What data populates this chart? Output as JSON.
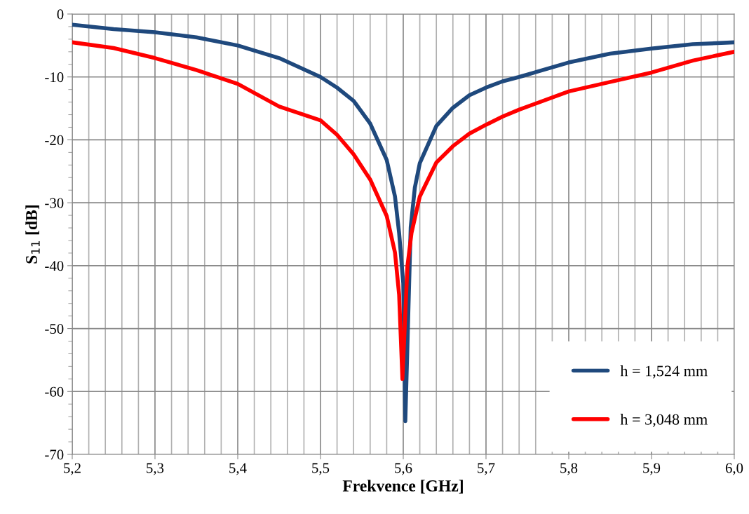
{
  "chart_data": {
    "type": "line",
    "xlabel": "Frekvence [GHz]",
    "ylabel": "S$_{11}$ [dB]",
    "xlim": [
      5.2,
      6.0
    ],
    "ylim": [
      -70,
      0
    ],
    "xticks": [
      {
        "value": 5.2,
        "label": "5,2"
      },
      {
        "value": 5.3,
        "label": "5,3"
      },
      {
        "value": 5.4,
        "label": "5,4"
      },
      {
        "value": 5.5,
        "label": "5,5"
      },
      {
        "value": 5.6,
        "label": "5,6"
      },
      {
        "value": 5.7,
        "label": "5,7"
      },
      {
        "value": 5.8,
        "label": "5,8"
      },
      {
        "value": 5.9,
        "label": "5,9"
      },
      {
        "value": 6.0,
        "label": "6,0"
      }
    ],
    "yticks": [
      -70,
      -60,
      -50,
      -40,
      -30,
      -20,
      -10,
      0
    ],
    "grid": true,
    "legend": "bottom right",
    "marker": "none",
    "line_style": "solid",
    "series": [
      {
        "name": "h = 1,524 mm",
        "color": "#1f497d",
        "x": [
          5.2,
          5.25,
          5.3,
          5.35,
          5.4,
          5.45,
          5.5,
          5.52,
          5.54,
          5.56,
          5.58,
          5.59,
          5.595,
          5.6,
          5.6025,
          5.609,
          5.614,
          5.62,
          5.64,
          5.66,
          5.68,
          5.7,
          5.72,
          5.74,
          5.8,
          5.85,
          5.9,
          5.95,
          6.0
        ],
        "values": [
          -1.7,
          -2.4,
          -2.9,
          -3.7,
          -5.0,
          -7.0,
          -10.0,
          -11.7,
          -13.8,
          -17.4,
          -23.2,
          -29.0,
          -34.8,
          -42.8,
          -64.7,
          -33.9,
          -27.6,
          -23.7,
          -17.8,
          -14.9,
          -12.9,
          -11.7,
          -10.7,
          -10.0,
          -7.7,
          -6.3,
          -5.5,
          -4.8,
          -4.5
        ]
      },
      {
        "name": "h = 3,048 mm",
        "color": "#ff0000",
        "x": [
          5.2,
          5.25,
          5.3,
          5.35,
          5.4,
          5.45,
          5.5,
          5.52,
          5.54,
          5.56,
          5.58,
          5.59,
          5.595,
          5.599,
          5.605,
          5.61,
          5.62,
          5.64,
          5.66,
          5.68,
          5.7,
          5.72,
          5.74,
          5.8,
          5.85,
          5.9,
          5.95,
          6.0
        ],
        "values": [
          -4.5,
          -5.4,
          -7.0,
          -8.9,
          -11.1,
          -14.7,
          -16.9,
          -19.2,
          -22.3,
          -26.3,
          -32.1,
          -37.9,
          -44.6,
          -58.0,
          -40.1,
          -34.8,
          -29.0,
          -23.6,
          -21.0,
          -19.0,
          -17.6,
          -16.3,
          -15.2,
          -12.3,
          -10.8,
          -9.3,
          -7.4,
          -6.0
        ]
      }
    ]
  }
}
